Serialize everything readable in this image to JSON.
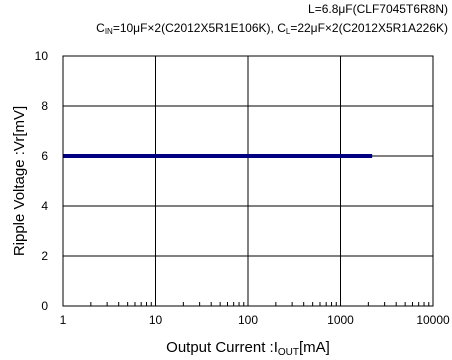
{
  "header": {
    "line1": "L=6.8μF(CLF7045T6R8N)",
    "line2_cin": "C",
    "line2_cin_sub": "IN",
    "line2_cin_val": "=10μF×2(C2012X5R1E106K), ",
    "line2_cl": "C",
    "line2_cl_sub": "L",
    "line2_cl_val": "=22μF×2(C2012X5R1A226K)"
  },
  "chart_data": {
    "type": "line",
    "xscale": "log",
    "xlim": [
      1,
      10000
    ],
    "ylim": [
      0,
      10
    ],
    "xticks": [
      1,
      10,
      100,
      1000,
      10000
    ],
    "xtick_labels": [
      "1",
      "10",
      "100",
      "1000",
      "10000"
    ],
    "yticks": [
      0,
      2,
      4,
      6,
      8,
      10
    ],
    "ytick_labels": [
      "0",
      "2",
      "4",
      "6",
      "8",
      "10"
    ],
    "xlabel": "Output Current :I",
    "xlabel_sub": "OUT",
    "xlabel_unit": "[mA]",
    "ylabel": "Ripple Voltage :Vr[mV]",
    "grid": true,
    "series": [
      {
        "x": [
          1,
          2200
        ],
        "values": [
          6.0,
          6.0
        ],
        "color": "#000080"
      }
    ]
  }
}
